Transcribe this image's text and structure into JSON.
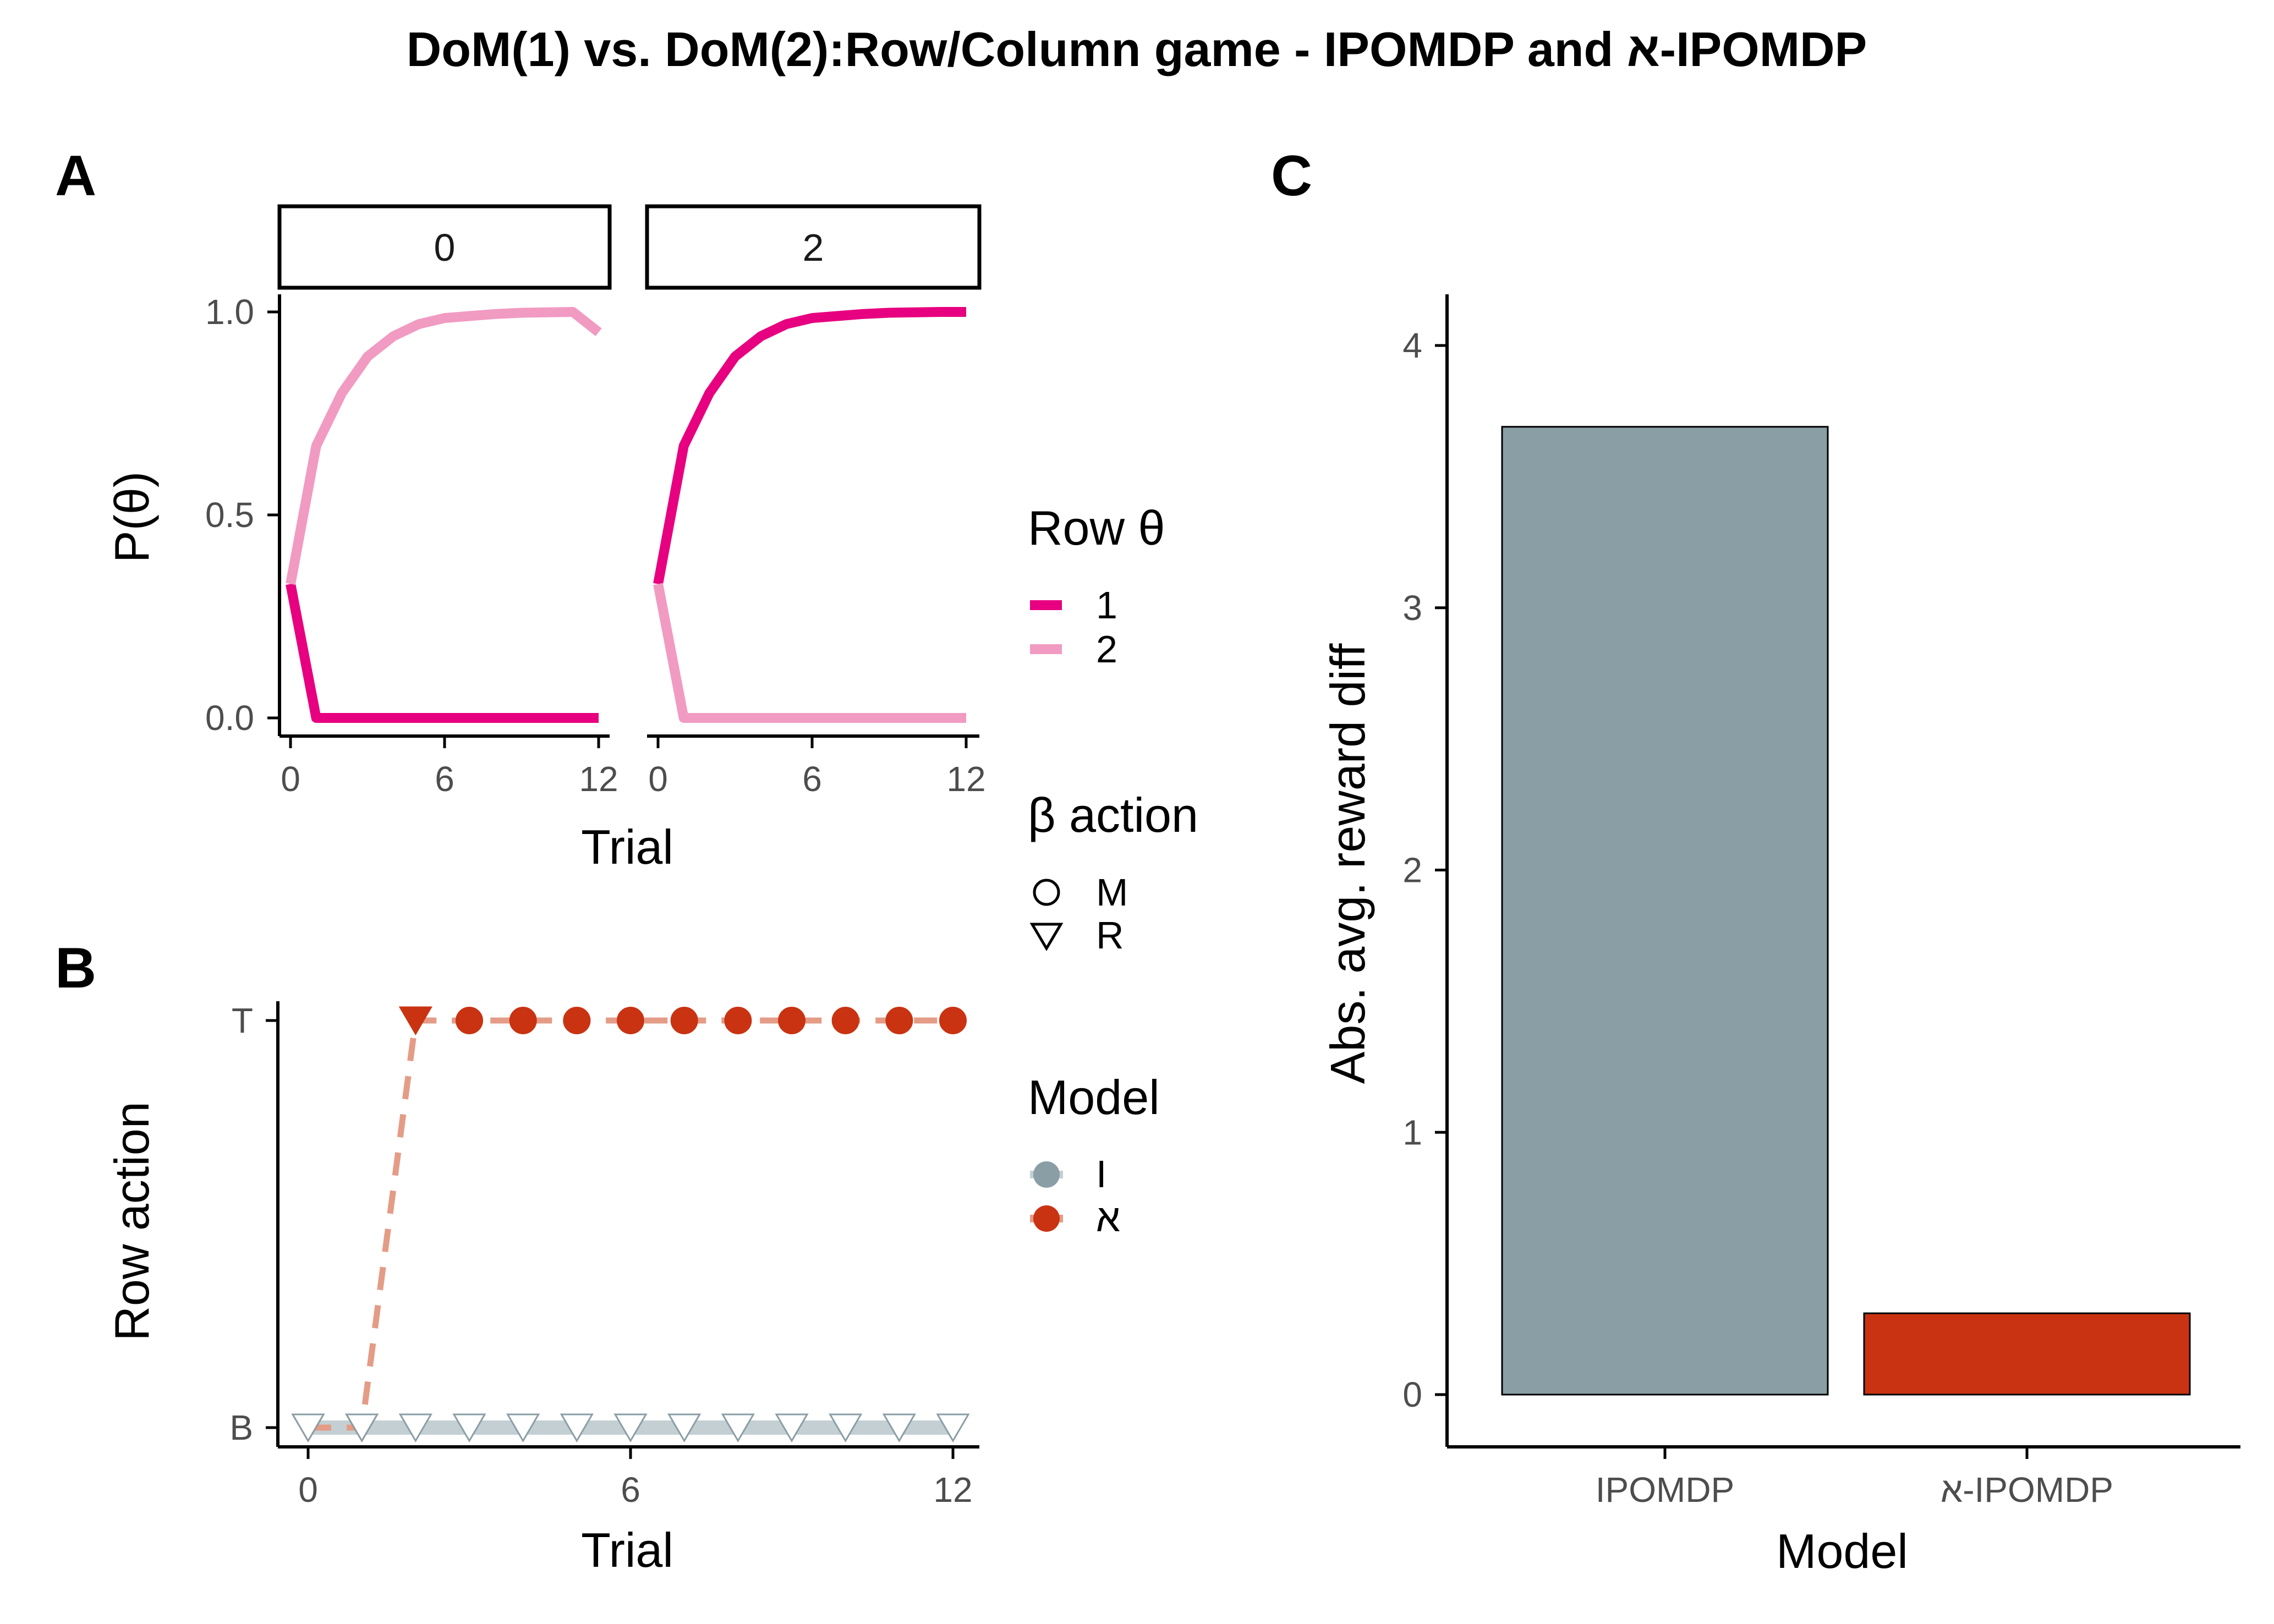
{
  "title": "DoM(1) vs. DoM(2):Row/Column game - IPOMDP and א-IPOMDP",
  "colors": {
    "theta1": "#E7007F",
    "theta2": "#F19BC2",
    "model_I": "#8A9EA5",
    "model_aleph": "#C93312",
    "model_aleph_line": "#E49C87",
    "model_I_line": "#C4CFD3"
  },
  "chart_data": [
    {
      "panel": "A",
      "type": "line",
      "xlabel": "Trial",
      "ylabel": "P(θ)",
      "ylim": [
        0,
        1
      ],
      "xlim": [
        0,
        12
      ],
      "y_ticks": [
        "0.0",
        "0.5",
        "1.0"
      ],
      "x_ticks": [
        "0",
        "6",
        "12"
      ],
      "facets": [
        {
          "label": "0",
          "series": [
            {
              "name": "1",
              "x": [
                0,
                1,
                2,
                3,
                4,
                5,
                6,
                7,
                8,
                9,
                10,
                11,
                12
              ],
              "values": [
                0.33,
                0.0,
                0.0,
                0.0,
                0.0,
                0.0,
                0.0,
                0.0,
                0.0,
                0.0,
                0.0,
                0.0,
                0.0
              ]
            },
            {
              "name": "2",
              "x": [
                0,
                1,
                2,
                3,
                4,
                5,
                6,
                7,
                8,
                9,
                10,
                11,
                12
              ],
              "values": [
                0.33,
                0.67,
                0.8,
                0.89,
                0.94,
                0.97,
                0.985,
                0.99,
                0.995,
                0.998,
                0.999,
                1.0,
                0.95
              ]
            }
          ]
        },
        {
          "label": "2",
          "series": [
            {
              "name": "1",
              "x": [
                0,
                1,
                2,
                3,
                4,
                5,
                6,
                7,
                8,
                9,
                10,
                11,
                12
              ],
              "values": [
                0.33,
                0.67,
                0.8,
                0.89,
                0.94,
                0.97,
                0.985,
                0.99,
                0.995,
                0.998,
                0.999,
                1.0,
                1.0
              ]
            },
            {
              "name": "2",
              "x": [
                0,
                1,
                2,
                3,
                4,
                5,
                6,
                7,
                8,
                9,
                10,
                11,
                12
              ],
              "values": [
                0.33,
                0.0,
                0.0,
                0.0,
                0.0,
                0.0,
                0.0,
                0.0,
                0.0,
                0.0,
                0.0,
                0.0,
                0.0
              ]
            }
          ]
        }
      ]
    },
    {
      "panel": "B",
      "type": "line",
      "xlabel": "Trial",
      "ylabel": "Row action",
      "y_categories": [
        "B",
        "T"
      ],
      "x_ticks": [
        "0",
        "6",
        "12"
      ],
      "xlim": [
        0,
        12
      ],
      "series": [
        {
          "name": "I",
          "x": [
            0,
            1,
            2,
            3,
            4,
            5,
            6,
            7,
            8,
            9,
            10,
            11,
            12
          ],
          "values": [
            "B",
            "B",
            "B",
            "B",
            "B",
            "B",
            "B",
            "B",
            "B",
            "B",
            "B",
            "B",
            "B"
          ],
          "beta_action": [
            "R",
            "R",
            "R",
            "R",
            "R",
            "R",
            "R",
            "R",
            "R",
            "R",
            "R",
            "R",
            "R"
          ]
        },
        {
          "name": "א",
          "x": [
            0,
            1,
            2,
            3,
            4,
            5,
            6,
            7,
            8,
            9,
            10,
            11,
            12
          ],
          "values": [
            "B",
            "B",
            "T",
            "T",
            "T",
            "T",
            "T",
            "T",
            "T",
            "T",
            "T",
            "T",
            "T"
          ],
          "beta_action": [
            "R",
            "R",
            "R",
            "M",
            "M",
            "M",
            "M",
            "M",
            "M",
            "M",
            "M",
            "M",
            "M"
          ]
        }
      ]
    },
    {
      "panel": "C",
      "type": "bar",
      "xlabel": "Model",
      "ylabel": "Abs. avg. reward diff",
      "categories": [
        "IPOMDP",
        "א-IPOMDP"
      ],
      "values": [
        3.69,
        0.31
      ],
      "ylim": [
        0,
        4.2
      ],
      "y_ticks": [
        "0",
        "1",
        "2",
        "3",
        "4"
      ]
    }
  ],
  "legends": {
    "row_theta": {
      "title": "Row θ",
      "items": [
        "1",
        "2"
      ]
    },
    "beta_action": {
      "title": "β action",
      "items": [
        "M",
        "R"
      ]
    },
    "model": {
      "title": "Model",
      "items": [
        "I",
        "א"
      ]
    }
  },
  "panel_letters": [
    "A",
    "B",
    "C"
  ]
}
